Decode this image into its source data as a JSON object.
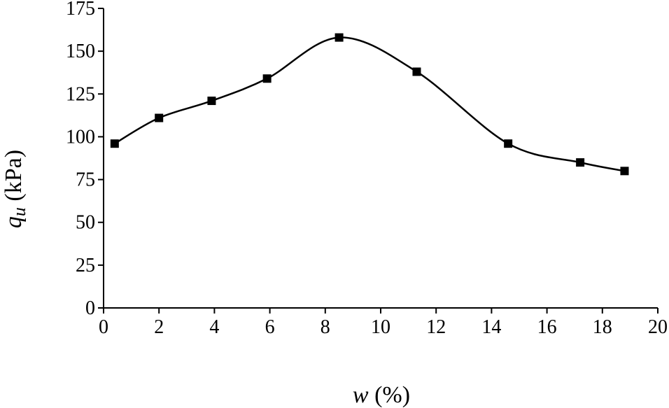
{
  "chart_data": {
    "type": "line",
    "xlabel": {
      "var": "w",
      "unit": " (%)"
    },
    "ylabel": {
      "var": "q",
      "sub": "u",
      "unit": " (kPa)"
    },
    "xlim": [
      0,
      20
    ],
    "ylim": [
      0,
      175
    ],
    "x_ticks": [
      "0",
      "2",
      "4",
      "6",
      "8",
      "10",
      "12",
      "14",
      "16",
      "18",
      "20"
    ],
    "y_ticks": [
      "0",
      "25",
      "50",
      "75",
      "100",
      "125",
      "150",
      "175"
    ],
    "grid": false,
    "series": [
      {
        "marker": "square",
        "color": "#000000",
        "points": [
          {
            "x": 0.4,
            "y": 96
          },
          {
            "x": 2.0,
            "y": 111
          },
          {
            "x": 3.9,
            "y": 121
          },
          {
            "x": 5.9,
            "y": 134
          },
          {
            "x": 8.5,
            "y": 158
          },
          {
            "x": 11.3,
            "y": 138
          },
          {
            "x": 14.6,
            "y": 96
          },
          {
            "x": 17.2,
            "y": 85
          },
          {
            "x": 18.8,
            "y": 80
          }
        ]
      }
    ]
  }
}
